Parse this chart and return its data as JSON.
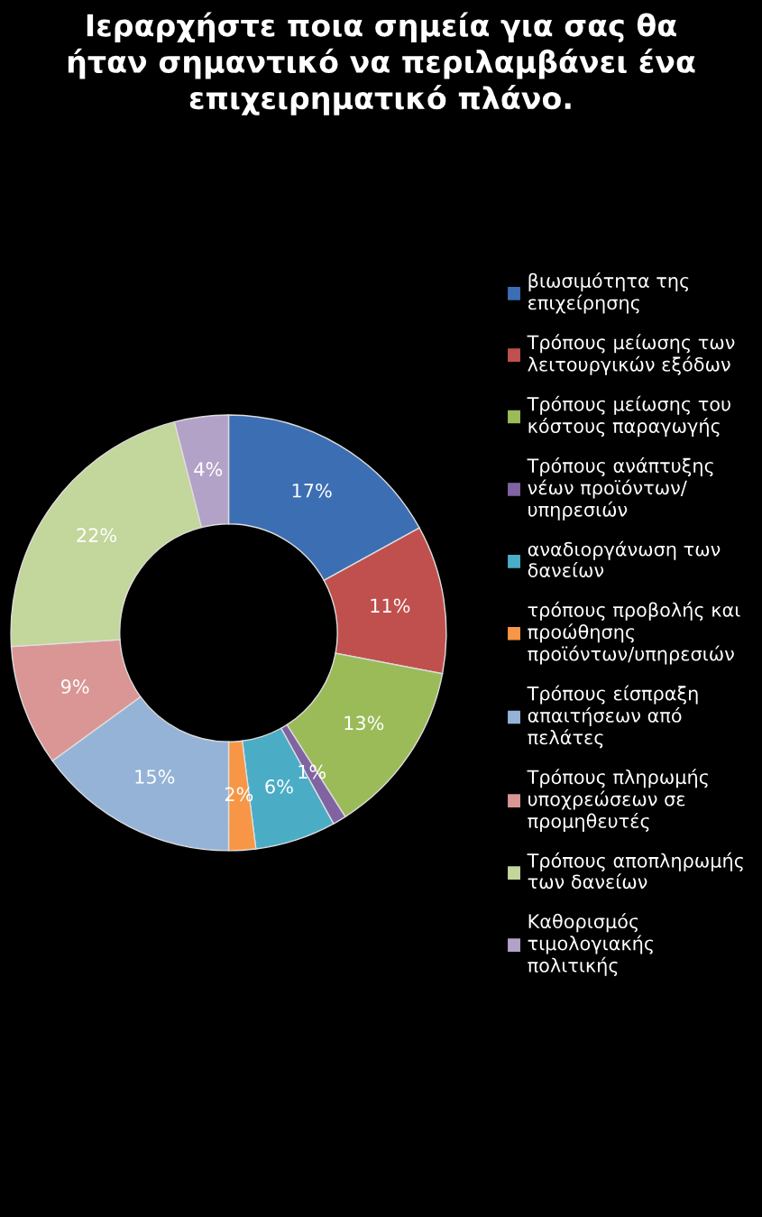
{
  "chart_data": {
    "type": "donut",
    "title": "Ιεραρχήστε ποια σημεία για σας θα ήταν σημαντικό να περιλαμβάνει ένα επιχειρηματικό πλάνο.",
    "categories": [
      "βιωσιμότητα της επιχείρησης",
      "Τρόπους μείωσης των λειτουργικών εξόδων",
      "Τρόπους μείωσης του κόστους παραγωγής",
      "Τρόπους ανάπτυξης νέων προϊόντων/ υπηρεσιών",
      "αναδιοργάνωση των δανείων",
      "τρόπους προβολής και προώθησης προϊόντων/υπηρεσιών",
      "Τρόπους είσπραξη απαιτήσεων από πελάτες",
      "Τρόπους πληρωμής υποχρεώσεων σε προμηθευτές",
      "Τρόπους αποπληρωμής των δανείων",
      "Καθορισμός τιμολογιακής πολιτικής"
    ],
    "values": [
      17,
      11,
      13,
      1,
      6,
      2,
      15,
      9,
      22,
      4
    ],
    "colors": [
      "#3c6eb4",
      "#c0504d",
      "#9bbb59",
      "#8064a2",
      "#4bacc6",
      "#f79646",
      "#95b3d7",
      "#d99694",
      "#c3d69b",
      "#b3a2c7"
    ],
    "value_labels": [
      "17%",
      "11%",
      "13%",
      "1%",
      "6%",
      "2%",
      "15%",
      "9%",
      "22%",
      "4%"
    ],
    "legend": "right"
  }
}
